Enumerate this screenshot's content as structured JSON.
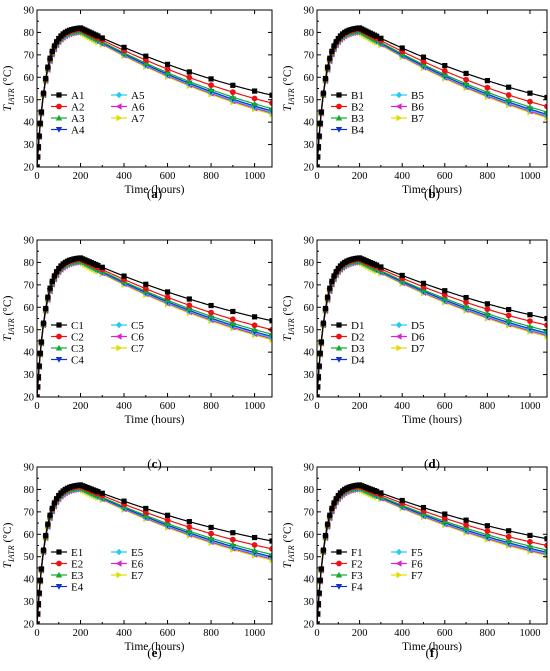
{
  "series_styles": [
    {
      "color": "#000000",
      "marker": "square"
    },
    {
      "color": "#ee1111",
      "marker": "circle"
    },
    {
      "color": "#11aa33",
      "marker": "triangle-up"
    },
    {
      "color": "#1133cc",
      "marker": "triangle-down"
    },
    {
      "color": "#22ccee",
      "marker": "diamond"
    },
    {
      "color": "#dd22cc",
      "marker": "triangle-left"
    },
    {
      "color": "#dddd00",
      "marker": "triangle-right"
    }
  ],
  "chart_data": [
    {
      "type": "line",
      "caption_open": "(",
      "caption_letter": "a",
      "caption_close": ")",
      "xlabel": "Time (hours)",
      "ylabel_main": "T",
      "ylabel_sub": "IATR",
      "ylabel_unit": " (°C)",
      "xlim": [
        0,
        1080
      ],
      "ylim": [
        20,
        90
      ],
      "xticks": [
        "0",
        "200",
        "400",
        "600",
        "800",
        "1000"
      ],
      "xtick_values": [
        0,
        200,
        400,
        600,
        800,
        1000
      ],
      "yticks": [
        "20",
        "30",
        "40",
        "50",
        "60",
        "70",
        "80",
        "90"
      ],
      "ytick_values": [
        20,
        30,
        40,
        50,
        60,
        70,
        80,
        90
      ],
      "series": [
        {
          "name": "A1",
          "peak": 82.0,
          "end": 52.0
        },
        {
          "name": "A2",
          "peak": 81.5,
          "end": 48.5
        },
        {
          "name": "A3",
          "peak": 81.0,
          "end": 46.0
        },
        {
          "name": "A4",
          "peak": 80.7,
          "end": 45.0
        },
        {
          "name": "A5",
          "peak": 80.5,
          "end": 44.5
        },
        {
          "name": "A6",
          "peak": 80.3,
          "end": 44.0
        },
        {
          "name": "A7",
          "peak": 80.0,
          "end": 43.5
        }
      ]
    },
    {
      "type": "line",
      "caption_open": "(",
      "caption_letter": "b",
      "caption_close": ")",
      "xlabel": "Time (hours)",
      "ylabel_main": "T",
      "ylabel_sub": "IATR",
      "ylabel_unit": " (°C)",
      "xlim": [
        0,
        1080
      ],
      "ylim": [
        20,
        90
      ],
      "xticks": [
        "0",
        "200",
        "400",
        "600",
        "800",
        "1000"
      ],
      "xtick_values": [
        0,
        200,
        400,
        600,
        800,
        1000
      ],
      "yticks": [
        "20",
        "30",
        "40",
        "50",
        "60",
        "70",
        "80",
        "90"
      ],
      "ytick_values": [
        20,
        30,
        40,
        50,
        60,
        70,
        80,
        90
      ],
      "series": [
        {
          "name": "B1",
          "peak": 82.0,
          "end": 51.0
        },
        {
          "name": "B2",
          "peak": 81.5,
          "end": 47.0
        },
        {
          "name": "B3",
          "peak": 81.0,
          "end": 44.5
        },
        {
          "name": "B4",
          "peak": 80.7,
          "end": 43.5
        },
        {
          "name": "B5",
          "peak": 80.5,
          "end": 43.0
        },
        {
          "name": "B6",
          "peak": 80.3,
          "end": 42.5
        },
        {
          "name": "B7",
          "peak": 80.0,
          "end": 42.0
        }
      ]
    },
    {
      "type": "line",
      "caption_open": "(",
      "caption_letter": "c",
      "caption_close": ")",
      "xlabel": "Time (hours)",
      "ylabel_main": "T",
      "ylabel_sub": "IATR",
      "ylabel_unit": " (°C)",
      "xlim": [
        0,
        1080
      ],
      "ylim": [
        20,
        90
      ],
      "xticks": [
        "0",
        "200",
        "400",
        "600",
        "800",
        "1000"
      ],
      "xtick_values": [
        0,
        200,
        400,
        600,
        800,
        1000
      ],
      "yticks": [
        "20",
        "30",
        "40",
        "50",
        "60",
        "70",
        "80",
        "90"
      ],
      "ytick_values": [
        20,
        30,
        40,
        50,
        60,
        70,
        80,
        90
      ],
      "series": [
        {
          "name": "C1",
          "peak": 82.0,
          "end": 54.0
        },
        {
          "name": "C2",
          "peak": 81.5,
          "end": 50.0
        },
        {
          "name": "C3",
          "peak": 81.0,
          "end": 48.0
        },
        {
          "name": "C4",
          "peak": 80.7,
          "end": 47.0
        },
        {
          "name": "C5",
          "peak": 80.5,
          "end": 46.5
        },
        {
          "name": "C6",
          "peak": 80.3,
          "end": 46.0
        },
        {
          "name": "C7",
          "peak": 80.0,
          "end": 45.5
        }
      ]
    },
    {
      "type": "line",
      "caption_open": "(",
      "caption_letter": "d",
      "caption_close": ")",
      "xlabel": "Time (hours)",
      "ylabel_main": "T",
      "ylabel_sub": "IATR",
      "ylabel_unit": " (°C)",
      "xlim": [
        0,
        1080
      ],
      "ylim": [
        20,
        90
      ],
      "xticks": [
        "0",
        "200",
        "400",
        "600",
        "800",
        "1000"
      ],
      "xtick_values": [
        0,
        200,
        400,
        600,
        800,
        1000
      ],
      "yticks": [
        "20",
        "30",
        "40",
        "50",
        "60",
        "70",
        "80",
        "90"
      ],
      "ytick_values": [
        20,
        30,
        40,
        50,
        60,
        70,
        80,
        90
      ],
      "series": [
        {
          "name": "D1",
          "peak": 82.0,
          "end": 55.0
        },
        {
          "name": "D2",
          "peak": 81.5,
          "end": 52.0
        },
        {
          "name": "D3",
          "peak": 81.0,
          "end": 49.5
        },
        {
          "name": "D4",
          "peak": 80.7,
          "end": 48.5
        },
        {
          "name": "D5",
          "peak": 80.5,
          "end": 48.0
        },
        {
          "name": "D6",
          "peak": 80.3,
          "end": 47.5
        },
        {
          "name": "D7",
          "peak": 80.0,
          "end": 47.0
        }
      ]
    },
    {
      "type": "line",
      "caption_open": "(",
      "caption_letter": "e",
      "caption_close": ")",
      "xlabel": "Time (hours)",
      "ylabel_main": "T",
      "ylabel_sub": "IATR",
      "ylabel_unit": " (°C)",
      "xlim": [
        0,
        1080
      ],
      "ylim": [
        20,
        90
      ],
      "xticks": [
        "0",
        "200",
        "400",
        "600",
        "800",
        "1000"
      ],
      "xtick_values": [
        0,
        200,
        400,
        600,
        800,
        1000
      ],
      "yticks": [
        "20",
        "30",
        "40",
        "50",
        "60",
        "70",
        "80",
        "90"
      ],
      "ytick_values": [
        20,
        30,
        40,
        50,
        60,
        70,
        80,
        90
      ],
      "series": [
        {
          "name": "E1",
          "peak": 82.0,
          "end": 57.0
        },
        {
          "name": "E2",
          "peak": 81.5,
          "end": 53.5
        },
        {
          "name": "E3",
          "peak": 81.0,
          "end": 51.0
        },
        {
          "name": "E4",
          "peak": 80.7,
          "end": 50.0
        },
        {
          "name": "E5",
          "peak": 80.5,
          "end": 49.5
        },
        {
          "name": "E6",
          "peak": 80.3,
          "end": 49.0
        },
        {
          "name": "E7",
          "peak": 80.0,
          "end": 48.5
        }
      ]
    },
    {
      "type": "line",
      "caption_open": "(",
      "caption_letter": "f",
      "caption_close": ")",
      "xlabel": "Time (hours)",
      "ylabel_main": "T",
      "ylabel_sub": "IATR",
      "ylabel_unit": " (°C)",
      "xlim": [
        0,
        1080
      ],
      "ylim": [
        20,
        90
      ],
      "xticks": [
        "0",
        "200",
        "400",
        "600",
        "800",
        "1000"
      ],
      "xtick_values": [
        0,
        200,
        400,
        600,
        800,
        1000
      ],
      "yticks": [
        "20",
        "30",
        "40",
        "50",
        "60",
        "70",
        "80",
        "90"
      ],
      "ytick_values": [
        20,
        30,
        40,
        50,
        60,
        70,
        80,
        90
      ],
      "series": [
        {
          "name": "F1",
          "peak": 82.0,
          "end": 58.0
        },
        {
          "name": "F2",
          "peak": 81.5,
          "end": 55.0
        },
        {
          "name": "F3",
          "peak": 81.0,
          "end": 53.0
        },
        {
          "name": "F4",
          "peak": 80.7,
          "end": 52.0
        },
        {
          "name": "F5",
          "peak": 80.5,
          "end": 51.5
        },
        {
          "name": "F6",
          "peak": 80.3,
          "end": 51.0
        },
        {
          "name": "F7",
          "peak": 80.0,
          "end": 50.5
        }
      ]
    }
  ]
}
